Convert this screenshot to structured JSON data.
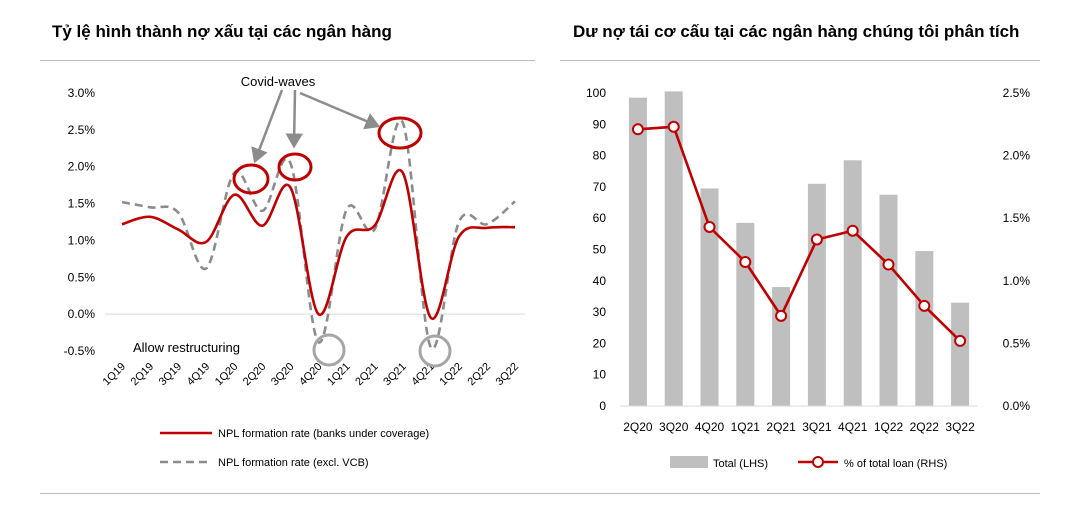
{
  "left_title": "Tỷ lệ hình thành nợ xấu tại các ngân hàng",
  "right_title": "Dư nợ tái cơ cấu tại các ngân hàng chúng tôi phân tích",
  "chart_data": [
    {
      "type": "line",
      "title": "Tỷ lệ hình thành nợ xấu tại các ngân hàng",
      "categories": [
        "1Q19",
        "2Q19",
        "3Q19",
        "4Q19",
        "1Q20",
        "2Q20",
        "3Q20",
        "4Q20",
        "1Q21",
        "2Q21",
        "3Q21",
        "4Q21",
        "1Q22",
        "2Q22",
        "3Q22"
      ],
      "y_ticks": [
        "3.0%",
        "2.5%",
        "2.0%",
        "1.5%",
        "1.0%",
        "0.5%",
        "0.0%",
        "-0.5%"
      ],
      "ylim": [
        -0.5,
        3.0
      ],
      "y_unit": "%",
      "grid": false,
      "series": [
        {
          "name": "NPL formation rate (banks under coverage)",
          "style": "solid",
          "color": "#c00000",
          "values": [
            1.22,
            1.32,
            1.15,
            0.98,
            1.62,
            1.2,
            1.72,
            0.0,
            1.05,
            1.2,
            1.92,
            -0.05,
            1.05,
            1.17,
            1.18
          ]
        },
        {
          "name": "NPL formation rate (excl. VCB)",
          "style": "dashed",
          "color": "#8c8c8c",
          "values": [
            1.52,
            1.45,
            1.38,
            0.62,
            1.92,
            1.4,
            2.05,
            -0.38,
            1.42,
            1.15,
            2.6,
            -0.45,
            1.25,
            1.22,
            1.53
          ]
        }
      ],
      "annotations": [
        "Covid-waves",
        "Allow restructuring"
      ],
      "legend_position": "bottom"
    },
    {
      "type": "bar+line",
      "title": "Dư nợ tái cơ cấu tại các ngân hàng chúng tôi phân tích",
      "categories": [
        "2Q20",
        "3Q20",
        "4Q20",
        "1Q21",
        "2Q21",
        "3Q21",
        "4Q21",
        "1Q22",
        "2Q22",
        "3Q22"
      ],
      "left_ticks": [
        "100",
        "90",
        "80",
        "70",
        "60",
        "50",
        "40",
        "30",
        "20",
        "10",
        "0"
      ],
      "right_ticks": [
        "2.5%",
        "2.0%",
        "1.5%",
        "1.0%",
        "0.5%",
        "0.0%"
      ],
      "ylim_left": [
        0,
        100
      ],
      "ylim_right": [
        0,
        2.5
      ],
      "grid": false,
      "series": [
        {
          "name": "Total (LHS)",
          "type": "bar",
          "axis": "left",
          "color": "#bfbfbf",
          "values": [
            98.5,
            100.5,
            69.5,
            58.5,
            38,
            71,
            78.5,
            67.5,
            49.5,
            33
          ]
        },
        {
          "name": "% of total loan (RHS)",
          "type": "line",
          "axis": "right",
          "color": "#c00000",
          "values": [
            2.21,
            2.23,
            1.43,
            1.15,
            0.72,
            1.33,
            1.4,
            1.13,
            0.8,
            0.52
          ]
        }
      ],
      "legend_position": "bottom"
    }
  ]
}
